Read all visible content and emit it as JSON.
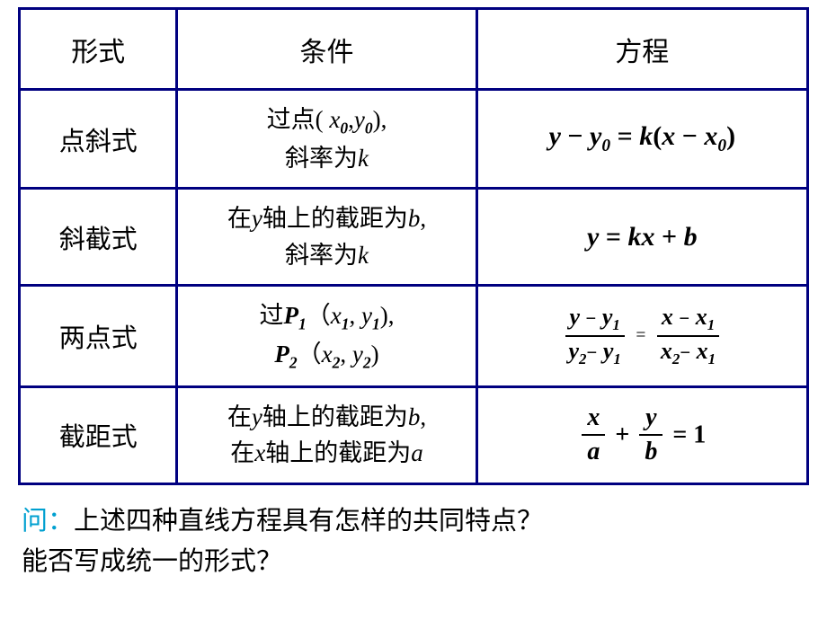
{
  "table": {
    "border_color": "#000080",
    "text_color": "#000000",
    "background_color": "#ffffff",
    "columns": {
      "widths_pct": [
        20,
        38,
        42
      ]
    },
    "headers": {
      "form": "形式",
      "condition": "条件",
      "equation": "方程"
    },
    "header_fontsize": 30,
    "body_fontsize": 28,
    "rows": [
      {
        "name": "点斜式",
        "cond_l1_a": "过点( ",
        "cond_l1_b": ",",
        "cond_l1_c": "),",
        "cond_l2_a": "斜率为",
        "eq": {
          "lhs_a": "y ",
          "lhs_b": " y",
          "op": " = ",
          "rhs_a": "k",
          "rhs_b": "(",
          "rhs_c": "x ",
          "rhs_d": " x",
          "rhs_e": ")"
        },
        "sub0": "0"
      },
      {
        "name": "斜截式",
        "cond_l1_a": "在",
        "cond_l1_b": "轴上的截距为",
        "cond_l1_c": ",",
        "cond_l2_a": "斜率为",
        "eq": {
          "a": "y ",
          "b": " kx ",
          "c": " b"
        }
      },
      {
        "name": "两点式",
        "cond_l1_a": "过",
        "cond_l1_b": "（",
        "cond_l1_c": ", ",
        "cond_l1_d": "),",
        "cond_l2_b": "（",
        "cond_l2_c": ", ",
        "cond_l2_d": ")",
        "P1": "P",
        "sub1": "1",
        "sub2": "2",
        "frac": {
          "n1a": "y ",
          "n1b": " y",
          "d1a": "y",
          "d1b": " y",
          "n2a": "x ",
          "n2b": " x",
          "d2a": "x",
          "d2b": " x"
        }
      },
      {
        "name": "截距式",
        "cond_l1_a": "在",
        "cond_l1_b": "轴上的截距为",
        "cond_l1_c": ",",
        "cond_l2_a": "在",
        "cond_l2_b": "轴上的截距为",
        "y": "y",
        "x": "x",
        "a": "a",
        "b": "b",
        "eq_eq": "1"
      }
    ]
  },
  "question": {
    "label": "问：",
    "label_color": "#00a0d0",
    "line1": "上述四种直线方程具有怎样的共同特点？",
    "line2": "能否写成统一的形式？",
    "fontsize": 29
  },
  "vars": {
    "x": "x",
    "y": "y",
    "k": "k",
    "b": "b",
    "a": "a",
    "minus": "−",
    "plus": "+",
    "eq": "="
  }
}
